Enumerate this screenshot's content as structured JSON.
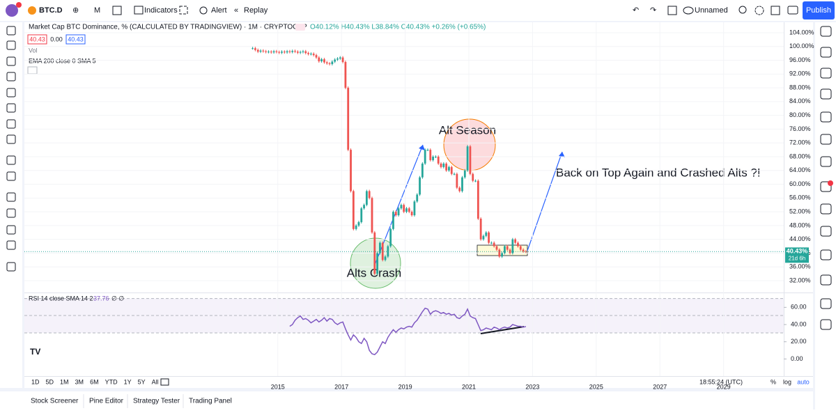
{
  "toolbar": {
    "symbol": "BTC.D",
    "interval": "M",
    "indicators": "Indicators",
    "alert": "Alert",
    "replay": "Replay",
    "layout": "Unnamed",
    "publish": "Publish"
  },
  "legend": {
    "title": "Market Cap BTC Dominance, % (CALCULATED BY TRADINGVIEW) · 1M · CRYPTOCAP",
    "ohlc": "O40.12% H40.43% L38.84% C40.43% +0.26% (+0.65%)",
    "boxes": [
      "40.43",
      "0.00",
      "40.43"
    ],
    "volume": "Vol",
    "ema": "EMA 200 close 0 SMA 5"
  },
  "chart_data": {
    "type": "candlestick",
    "closes": [
      99.5,
      99,
      98.5,
      98.8,
      98.6,
      98.4,
      98.5,
      98.3,
      98.6,
      98.4,
      98.2,
      98.5,
      98.3,
      98.6,
      98.4,
      98.7,
      98.5,
      98.2,
      98.4,
      98.6,
      98.1,
      97.8,
      97.9,
      97.5,
      96.8,
      95.7,
      96.3,
      95.4,
      95.1,
      94.9,
      95.6,
      96.2,
      96.5,
      96.8,
      95.5,
      88,
      70,
      58,
      47,
      48,
      49,
      53,
      54,
      58,
      56,
      46,
      34,
      40,
      43,
      38,
      39,
      42,
      47,
      52,
      51,
      53,
      54,
      52,
      53,
      52,
      51,
      55,
      57,
      62,
      66,
      70,
      70,
      67,
      68,
      68,
      66,
      65,
      66,
      64,
      65,
      63,
      63,
      59,
      58,
      62,
      64,
      71,
      63,
      61,
      61,
      50,
      44,
      45,
      46,
      43,
      43,
      42,
      41,
      39,
      40,
      42,
      41,
      40,
      44,
      43,
      42,
      41,
      40.5,
      40.43
    ],
    "ylim": [
      28.56,
      107.03
    ],
    "yticks": [
      {
        "value": 104,
        "label": "104.00%"
      },
      {
        "value": 100,
        "label": "100.00%"
      },
      {
        "value": 96,
        "label": "96.00%"
      },
      {
        "value": 92,
        "label": "92.00%"
      },
      {
        "value": 88,
        "label": "88.00%"
      },
      {
        "value": 84,
        "label": "84.00%"
      },
      {
        "value": 80,
        "label": "80.00%"
      },
      {
        "value": 76,
        "label": "76.00%"
      },
      {
        "value": 72,
        "label": "72.00%"
      },
      {
        "value": 68,
        "label": "68.00%"
      },
      {
        "value": 64,
        "label": "64.00%"
      },
      {
        "value": 60,
        "label": "60.00%"
      },
      {
        "value": 56,
        "label": "56.00%"
      },
      {
        "value": 52,
        "label": "52.00%"
      },
      {
        "value": 48,
        "label": "48.00%"
      },
      {
        "value": 44,
        "label": "44.00%"
      },
      {
        "value": 40,
        "label": "40.00%"
      },
      {
        "value": 36,
        "label": "36.00%"
      },
      {
        "value": 32,
        "label": "32.00%"
      }
    ],
    "xlim": [
      2007.04,
      2030.89
    ],
    "xticks": [
      2015,
      2017,
      2019,
      2021,
      2023,
      2025,
      2027,
      2029
    ],
    "last_price": {
      "value": 40.43,
      "label": "40.43%"
    },
    "countdown": "21d 6h",
    "up_color": "#26a69a",
    "down_color": "#ef5350"
  },
  "annotations": {
    "season": "Alt Season",
    "crash": "Alts Crash",
    "top": "Back on Top Again and Crashed Alts ?!"
  },
  "rsi": {
    "label": "RSI 14 close SMA 14 2",
    "value": 37.76,
    "flags": "∅ ∅",
    "color": "#7e57c2",
    "ylim": [
      -19.9,
      73.2
    ],
    "yticks": [
      {
        "value": 60,
        "label": "60.00"
      },
      {
        "value": 40,
        "label": "40.00"
      },
      {
        "value": 20,
        "label": "20.00"
      },
      {
        "value": 0,
        "label": "0.00"
      }
    ],
    "values": [
      null,
      null,
      null,
      null,
      null,
      null,
      null,
      null,
      null,
      null,
      null,
      null,
      null,
      null,
      38,
      40,
      45,
      48,
      50,
      46,
      47,
      45,
      42,
      44,
      46,
      43,
      45,
      48,
      44,
      47,
      46,
      42,
      40,
      42,
      43,
      35,
      28,
      22,
      28,
      25,
      20,
      18,
      24,
      20,
      10,
      6,
      5,
      8,
      14,
      20,
      18,
      25,
      30,
      34,
      31,
      34,
      36,
      35,
      37,
      38,
      37,
      42,
      45,
      50,
      55,
      59,
      58,
      52,
      55,
      56,
      55,
      53,
      54,
      52,
      53,
      51,
      52,
      48,
      47,
      50,
      52,
      58,
      50,
      48,
      47,
      40,
      33,
      34,
      36,
      35,
      34,
      37,
      36,
      34,
      36,
      37,
      36,
      37,
      40,
      39,
      38,
      38,
      37,
      37.76
    ]
  },
  "bottom": {
    "ranges": [
      "1D",
      "5D",
      "1M",
      "3M",
      "6M",
      "YTD",
      "1Y",
      "5Y",
      "All"
    ],
    "time": "18:55:24 (UTC)",
    "percent": "%",
    "log": "log",
    "auto": "auto"
  },
  "tabs": [
    "Stock Screener",
    "Pine Editor",
    "Strategy Tester",
    "Trading Panel"
  ]
}
